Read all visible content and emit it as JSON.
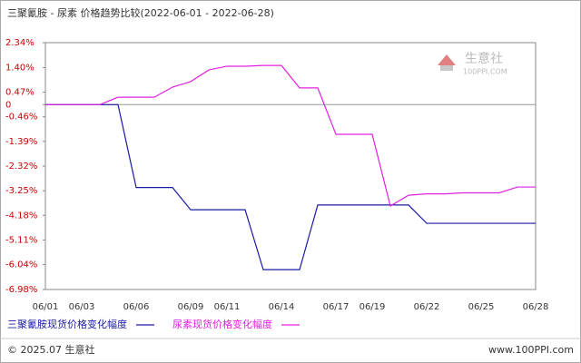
{
  "chart_data": {
    "type": "line",
    "title": "三聚氰胺 - 尿素 价格趋势比较(2022-06-01 - 2022-06-28)",
    "categories": [
      "06/01",
      null,
      "06/03",
      null,
      null,
      "06/06",
      null,
      null,
      "06/09",
      null,
      "06/11",
      null,
      null,
      "06/14",
      null,
      null,
      "06/17",
      null,
      "06/19",
      null,
      null,
      "06/22",
      null,
      null,
      "06/25",
      null,
      null,
      "06/28"
    ],
    "series": [
      {
        "name": "三聚氰胺现货价格变化幅度",
        "color": "#1a1aa6",
        "values": [
          0,
          0,
          0,
          0,
          0,
          -3.13,
          -3.13,
          -3.13,
          -3.97,
          -3.97,
          -3.97,
          -3.97,
          -6.23,
          -6.23,
          -6.23,
          -3.79,
          -3.79,
          -3.79,
          -3.79,
          -3.79,
          -3.79,
          -4.48,
          -4.48,
          -4.48,
          -4.48,
          -4.48,
          -4.48,
          -4.48
        ]
      },
      {
        "name": "尿素现货价格变化幅度",
        "color": "#e020e0",
        "values": [
          0,
          0,
          0,
          0,
          0.28,
          0.28,
          0.28,
          0.66,
          0.87,
          1.31,
          1.45,
          1.45,
          1.48,
          1.48,
          0.63,
          0.63,
          -1.12,
          -1.12,
          -1.12,
          -3.83,
          -3.42,
          -3.37,
          -3.37,
          -3.33,
          -3.33,
          -3.33,
          -3.11,
          -3.11
        ]
      }
    ],
    "ylim": [
      -6.98,
      2.34
    ],
    "yticks": [
      {
        "value": 2.34,
        "label": "2.34%"
      },
      {
        "value": 1.4,
        "label": "1.40%"
      },
      {
        "value": 0.47,
        "label": "0.47%"
      },
      0,
      {
        "value": -0.46,
        "label": "-0.46%"
      },
      {
        "value": -1.39,
        "label": "-1.39%"
      },
      {
        "value": -2.32,
        "label": "-2.32%"
      },
      {
        "value": -3.25,
        "label": "-3.25%"
      },
      {
        "value": -4.18,
        "label": "-4.18%"
      },
      {
        "value": -5.11,
        "label": "-5.11%"
      },
      {
        "value": -6.04,
        "label": "-6.04%"
      },
      {
        "value": -6.98,
        "label": "-6.98%"
      }
    ],
    "grid": false,
    "watermark": {
      "name": "生意社",
      "site": "100PPI.COM"
    },
    "footer": {
      "copyright": "© 2025.07 生意社",
      "site": "www.100PPI.com"
    }
  }
}
